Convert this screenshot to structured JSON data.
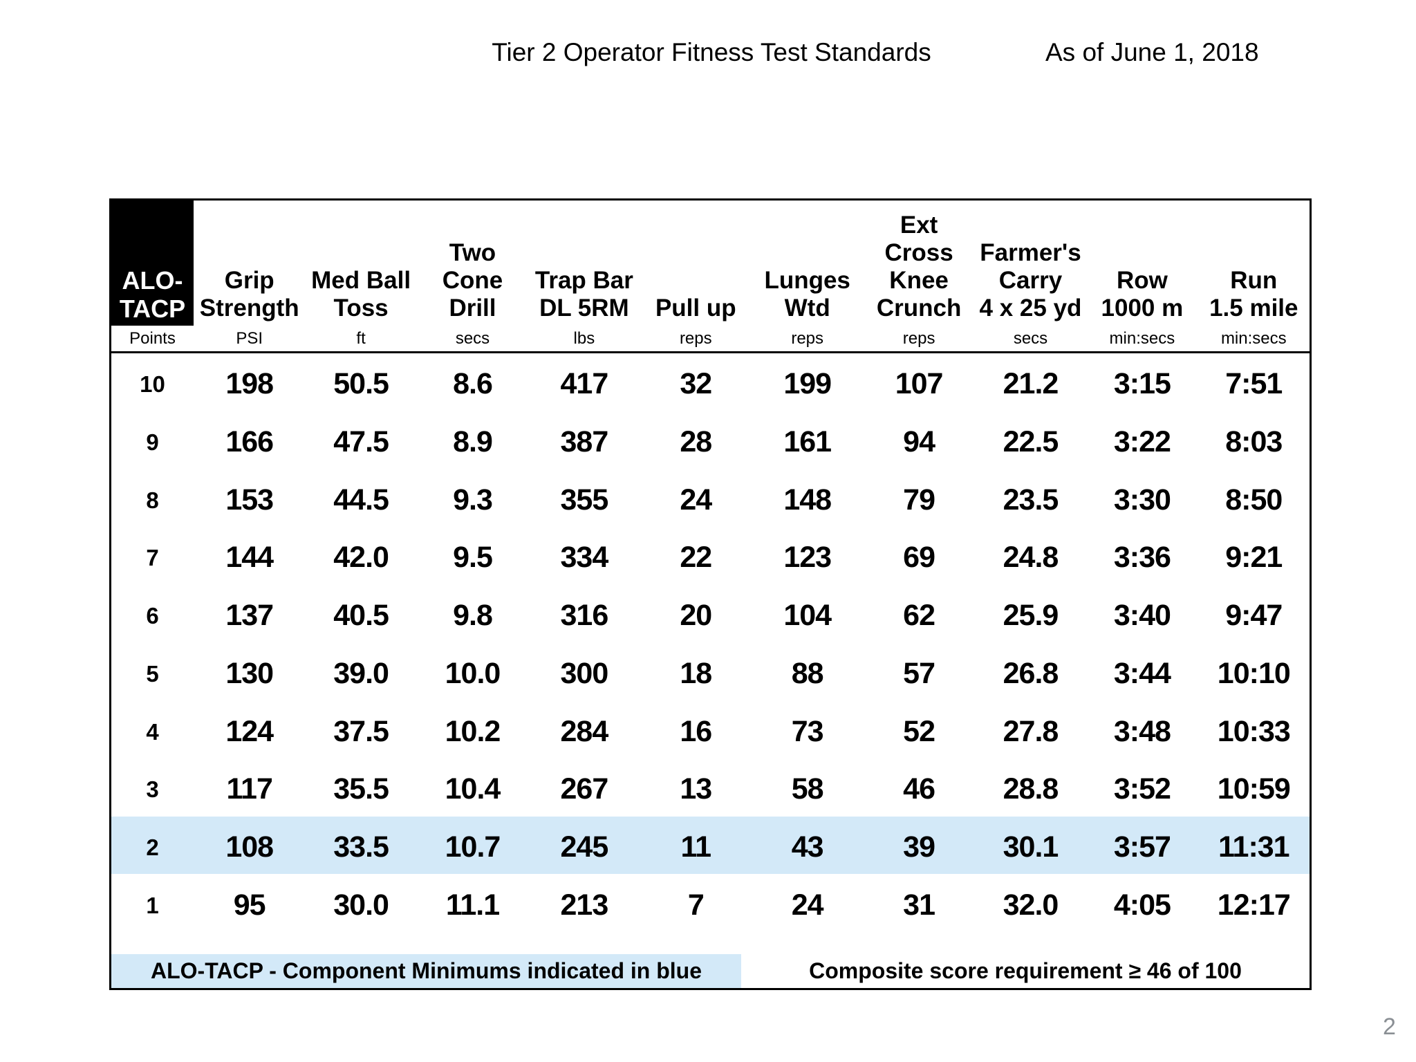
{
  "page": {
    "title": "Tier 2 Operator Fitness Test Standards",
    "as_of": "As of June 1, 2018",
    "page_number": "2"
  },
  "colors": {
    "highlight_blue": "#d3e9f8",
    "header_cell_black": "#000000"
  },
  "table": {
    "corner": {
      "label": "ALO-\nTACP",
      "unit": "Points"
    },
    "columns": [
      {
        "label": "Grip\nStrength",
        "unit": "PSI"
      },
      {
        "label": "Med Ball\nToss",
        "unit": "ft"
      },
      {
        "label": "Two\nCone\nDrill",
        "unit": "secs"
      },
      {
        "label": "Trap Bar\nDL 5RM",
        "unit": "lbs"
      },
      {
        "label": "Pull up",
        "unit": "reps"
      },
      {
        "label": "Lunges\nWtd",
        "unit": "reps"
      },
      {
        "label": "Ext\nCross\nKnee\nCrunch",
        "unit": "reps"
      },
      {
        "label": "Farmer's\nCarry\n4 x 25 yd",
        "unit": "secs"
      },
      {
        "label": "Row\n1000 m",
        "unit": "min:secs"
      },
      {
        "label": "Run\n1.5 mile",
        "unit": "min:secs"
      }
    ],
    "rows": [
      {
        "points": "10",
        "highlight": false,
        "values": [
          "198",
          "50.5",
          "8.6",
          "417",
          "32",
          "199",
          "107",
          "21.2",
          "3:15",
          "7:51"
        ]
      },
      {
        "points": "9",
        "highlight": false,
        "values": [
          "166",
          "47.5",
          "8.9",
          "387",
          "28",
          "161",
          "94",
          "22.5",
          "3:22",
          "8:03"
        ]
      },
      {
        "points": "8",
        "highlight": false,
        "values": [
          "153",
          "44.5",
          "9.3",
          "355",
          "24",
          "148",
          "79",
          "23.5",
          "3:30",
          "8:50"
        ]
      },
      {
        "points": "7",
        "highlight": false,
        "values": [
          "144",
          "42.0",
          "9.5",
          "334",
          "22",
          "123",
          "69",
          "24.8",
          "3:36",
          "9:21"
        ]
      },
      {
        "points": "6",
        "highlight": false,
        "values": [
          "137",
          "40.5",
          "9.8",
          "316",
          "20",
          "104",
          "62",
          "25.9",
          "3:40",
          "9:47"
        ]
      },
      {
        "points": "5",
        "highlight": false,
        "values": [
          "130",
          "39.0",
          "10.0",
          "300",
          "18",
          "88",
          "57",
          "26.8",
          "3:44",
          "10:10"
        ]
      },
      {
        "points": "4",
        "highlight": false,
        "values": [
          "124",
          "37.5",
          "10.2",
          "284",
          "16",
          "73",
          "52",
          "27.8",
          "3:48",
          "10:33"
        ]
      },
      {
        "points": "3",
        "highlight": false,
        "values": [
          "117",
          "35.5",
          "10.4",
          "267",
          "13",
          "58",
          "46",
          "28.8",
          "3:52",
          "10:59"
        ]
      },
      {
        "points": "2",
        "highlight": true,
        "values": [
          "108",
          "33.5",
          "10.7",
          "245",
          "11",
          "43",
          "39",
          "30.1",
          "3:57",
          "11:31"
        ]
      },
      {
        "points": "1",
        "highlight": false,
        "values": [
          "95",
          "30.0",
          "11.1",
          "213",
          "7",
          "24",
          "31",
          "32.0",
          "4:05",
          "12:17"
        ]
      }
    ],
    "footer": {
      "left_note": "ALO-TACP - Component Minimums indicated in blue",
      "right_note": "Composite score requirement ≥ 46 of 100"
    }
  }
}
